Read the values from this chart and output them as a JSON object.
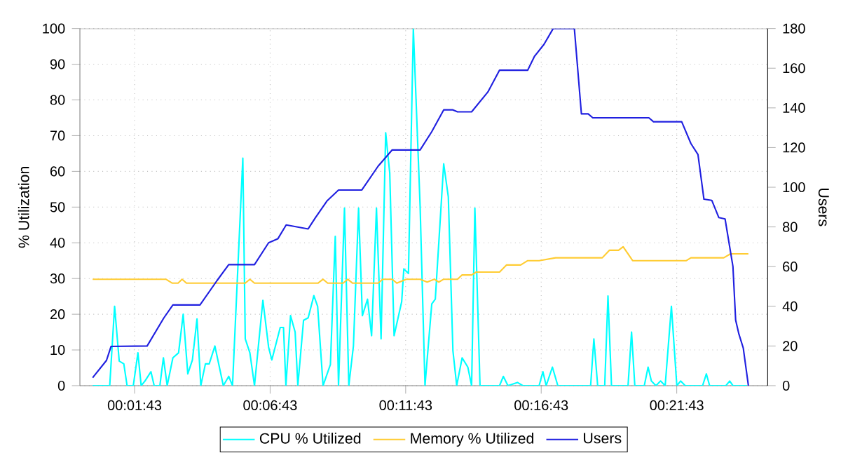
{
  "chart_data": {
    "type": "line",
    "ylabel": "% Utilization",
    "y2label": "Users",
    "xlim": [
      -0.3,
      25.07
    ],
    "xticks": [
      {
        "value": 1.717,
        "label": "00:01:43"
      },
      {
        "value": 6.717,
        "label": "00:06:43"
      },
      {
        "value": 11.717,
        "label": "00:11:43"
      },
      {
        "value": 16.717,
        "label": "00:16:43"
      },
      {
        "value": 21.717,
        "label": "00:21:43"
      }
    ],
    "ylim": [
      0,
      100
    ],
    "yticks": [
      0,
      10,
      20,
      30,
      40,
      50,
      60,
      70,
      80,
      90,
      100
    ],
    "y2lim": [
      0,
      180
    ],
    "y2ticks": [
      0,
      20,
      40,
      60,
      80,
      100,
      120,
      140,
      160,
      180
    ],
    "grid": true,
    "legend": "bottom",
    "marker": "none",
    "line_style": "solid",
    "series": [
      {
        "name": "CPU % Utilized",
        "color": "#00ffff",
        "x": [
          0.17,
          0.8,
          0.98,
          1.15,
          1.32,
          1.44,
          1.67,
          1.84,
          1.96,
          2.1,
          2.32,
          2.44,
          2.65,
          2.78,
          2.92,
          3.13,
          3.34,
          3.51,
          3.68,
          3.85,
          4.02,
          4.16,
          4.33,
          4.47,
          4.68,
          4.99,
          5.19,
          5.33,
          5.71,
          5.8,
          5.97,
          6.14,
          6.45,
          6.66,
          6.78,
          7.09,
          7.21,
          7.3,
          7.47,
          7.64,
          7.74,
          7.95,
          8.12,
          8.33,
          8.47,
          8.67,
          8.94,
          9.12,
          9.24,
          9.46,
          9.62,
          9.79,
          9.98,
          10.12,
          10.31,
          10.46,
          10.64,
          10.81,
          10.98,
          11.13,
          11.29,
          11.57,
          11.65,
          11.82,
          12.0,
          12.25,
          12.43,
          12.68,
          12.81,
          13.12,
          13.29,
          13.46,
          13.6,
          13.8,
          14.01,
          14.15,
          14.27,
          14.46,
          15.18,
          15.32,
          15.49,
          15.84,
          16.04,
          16.64,
          16.78,
          16.9,
          17.13,
          17.33,
          18.54,
          18.66,
          18.8,
          19.06,
          19.18,
          19.31,
          19.92,
          20.05,
          20.17,
          20.52,
          20.66,
          20.78,
          20.95,
          21.12,
          21.29,
          21.52,
          21.72,
          21.86,
          22.03,
          22.67,
          22.81,
          22.93,
          23.53,
          23.67,
          23.79,
          24.31
        ],
        "values": [
          0,
          0,
          22.2,
          6.9,
          6.1,
          0,
          0,
          9.2,
          0,
          1.3,
          3.9,
          0,
          0,
          7.8,
          0,
          7.8,
          9.2,
          20,
          3.3,
          7.2,
          18.7,
          0,
          6.1,
          6.1,
          11.1,
          0,
          2.6,
          0,
          63.7,
          13.1,
          9.2,
          0,
          23.9,
          10.8,
          7.2,
          16.3,
          16.3,
          0,
          19.6,
          15,
          0,
          18.3,
          19,
          25.2,
          22.2,
          0,
          5.9,
          41.8,
          0,
          49.7,
          0,
          11.1,
          49.7,
          19.6,
          24.2,
          14,
          49.7,
          13.1,
          70.8,
          59.5,
          14,
          23.5,
          32.7,
          31.4,
          100,
          50.3,
          0,
          22.9,
          24.2,
          62.1,
          52.9,
          9.8,
          0,
          7.8,
          5.2,
          0,
          49.7,
          0,
          0,
          2.6,
          0,
          0.9,
          0,
          0,
          3.9,
          0,
          5.2,
          0,
          0,
          13.1,
          0,
          0,
          25.1,
          0,
          0,
          15,
          0,
          0,
          5.2,
          1.3,
          0,
          1.3,
          0,
          22.2,
          0,
          1.3,
          0,
          0,
          3.3,
          0,
          0,
          1.3,
          0,
          0
        ]
      },
      {
        "name": "Memory % Utilized",
        "color": "#ffcc33",
        "x": [
          0.17,
          2.87,
          3.11,
          3.32,
          3.47,
          3.63,
          5.8,
          5.97,
          6.14,
          8.48,
          8.67,
          8.84,
          9.41,
          9.58,
          9.76,
          10.7,
          10.87,
          11.22,
          11.39,
          11.74,
          11.91,
          12.25,
          12.51,
          12.77,
          12.94,
          13.12,
          13.63,
          13.8,
          14.15,
          14.32,
          15.18,
          15.44,
          15.96,
          16.22,
          16.64,
          17.25,
          18.97,
          19.23,
          19.57,
          19.74,
          20.09,
          22.07,
          22.24,
          23.45,
          23.7,
          24.36
        ],
        "values": [
          29.8,
          29.8,
          28.7,
          28.7,
          29.8,
          28.7,
          28.7,
          29.8,
          28.7,
          28.7,
          29.8,
          28.7,
          28.7,
          29.8,
          28.7,
          28.7,
          29.8,
          29.8,
          28.7,
          29.8,
          29.8,
          29.8,
          29.0,
          29.8,
          29.0,
          29.8,
          29.8,
          31,
          31,
          31.8,
          31.8,
          33.8,
          33.8,
          35,
          35,
          35.8,
          35.8,
          37.9,
          37.9,
          38.9,
          35,
          35,
          35.8,
          35.8,
          36.9,
          36.9
        ]
      },
      {
        "name": "Users",
        "color": "#2020e0",
        "axis": "y2",
        "x": [
          0.17,
          0.68,
          0.85,
          2.18,
          2.79,
          3.13,
          4.13,
          4.76,
          5.19,
          6.14,
          6.66,
          7.0,
          7.31,
          8.12,
          8.38,
          8.81,
          9.24,
          10.1,
          10.7,
          11.22,
          12.25,
          12.68,
          13.12,
          13.46,
          13.63,
          14.15,
          14.75,
          15.18,
          16.22,
          16.47,
          16.82,
          17.16,
          17.94,
          18.2,
          18.45,
          18.62,
          20.69,
          20.86,
          21.9,
          22.24,
          22.5,
          22.72,
          23.01,
          23.27,
          23.5,
          23.79,
          23.89,
          24.01,
          24.17,
          24.36
        ],
        "values": [
          4,
          12.7,
          19.8,
          20,
          34,
          40.7,
          40.7,
          53,
          61,
          61,
          72,
          74,
          81,
          79,
          84.5,
          93,
          98.6,
          98.6,
          110.6,
          118.8,
          118.8,
          128,
          139,
          139,
          138,
          138,
          148,
          159,
          159,
          166,
          172,
          180,
          180,
          137,
          137,
          135,
          135,
          133,
          133,
          122,
          116.5,
          94,
          93.4,
          84.7,
          84,
          60,
          33,
          26,
          19,
          0
        ]
      }
    ]
  }
}
